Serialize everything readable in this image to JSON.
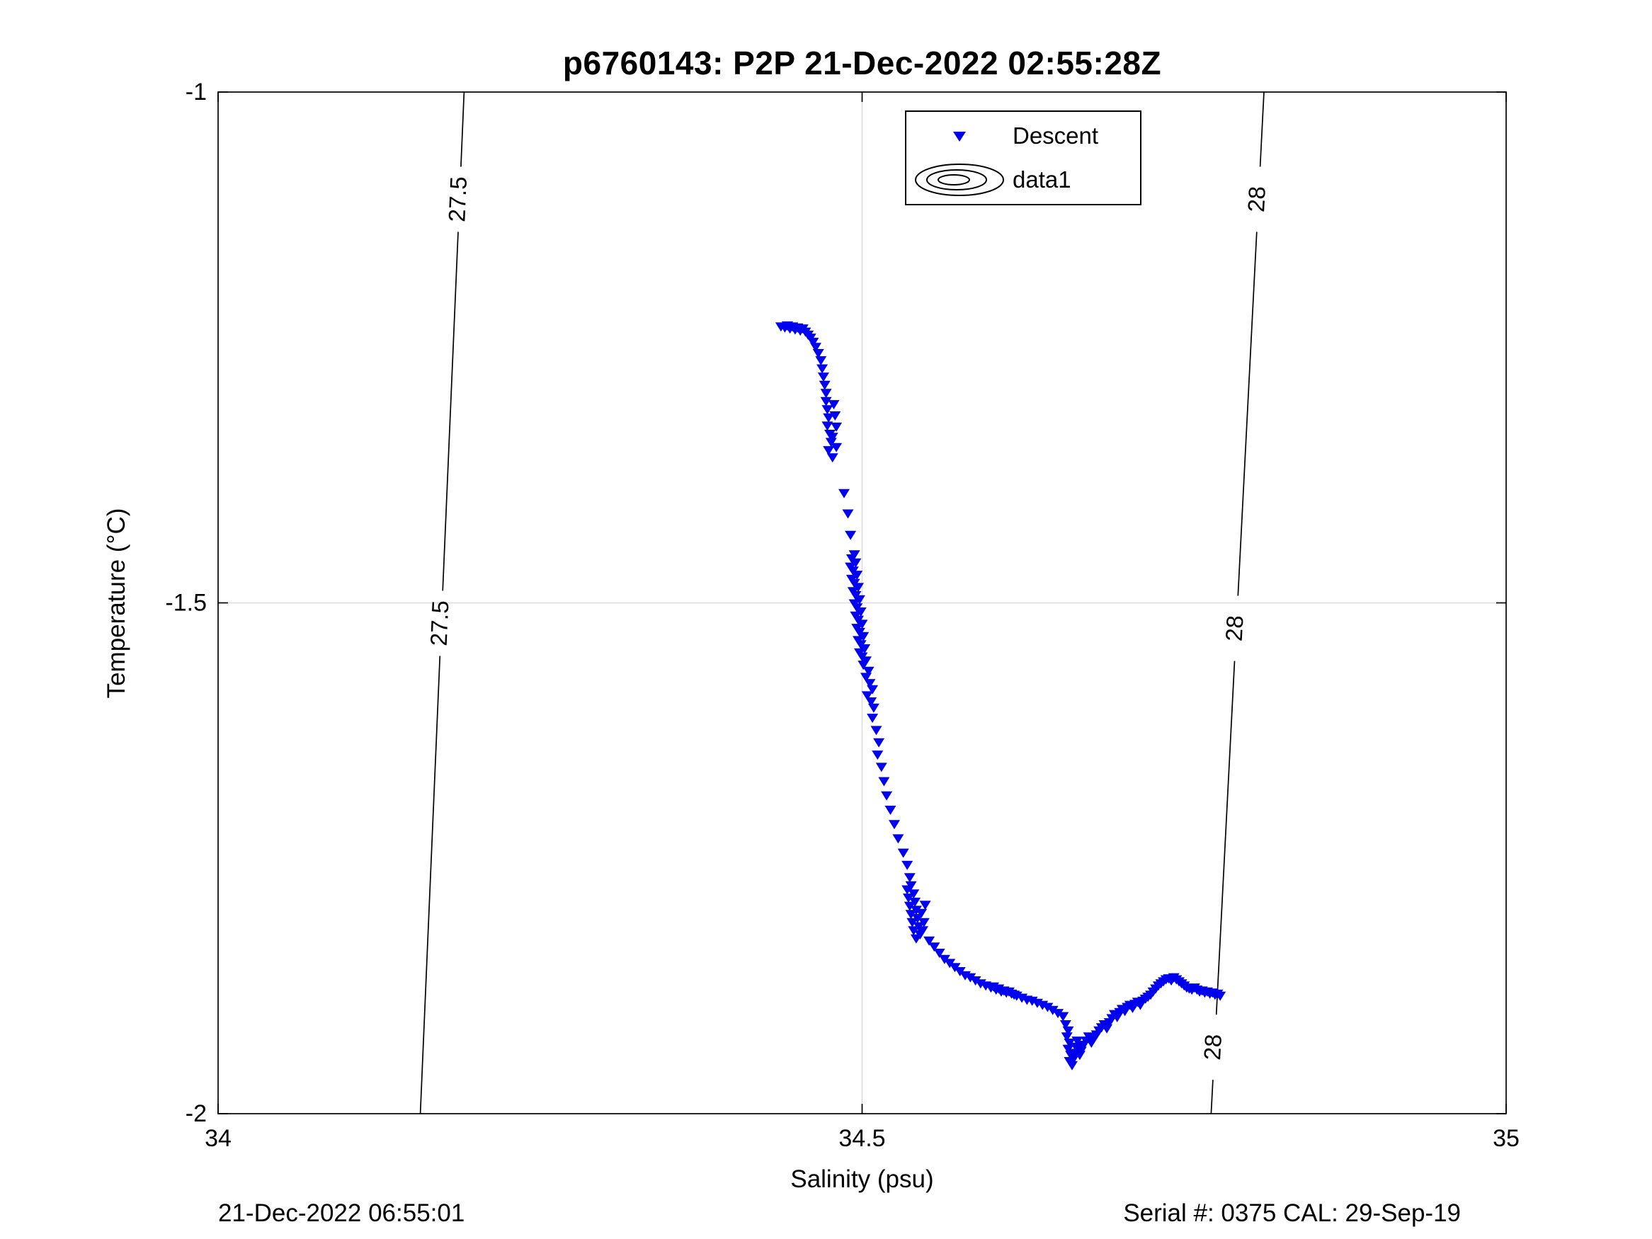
{
  "title": "p6760143: P2P 21-Dec-2022 02:55:28Z",
  "footer": {
    "left": "21-Dec-2022 06:55:01",
    "right": "Serial #: 0375  CAL: 29-Sep-19"
  },
  "legend": {
    "position": "top-center-right",
    "items": [
      {
        "label": "Descent",
        "marker": "triangle-down",
        "color": "#0000EE"
      },
      {
        "label": "data1",
        "marker": "contour-rings",
        "color": "#000000"
      }
    ]
  },
  "chart_data": {
    "type": "scatter",
    "title": "p6760143: P2P 21-Dec-2022 02:55:28Z",
    "xlabel": "Salinity (psu)",
    "ylabel": "Temperature (°C)",
    "xlim": [
      34,
      35
    ],
    "ylim": [
      -2,
      -1
    ],
    "grid": {
      "x": [
        34.5
      ],
      "y": [
        -1.5
      ],
      "color": "#dcdcdc"
    },
    "xticks": [
      {
        "v": 34,
        "label": "34"
      },
      {
        "v": 34.5,
        "label": "34.5"
      },
      {
        "v": 35,
        "label": "35"
      }
    ],
    "yticks": [
      {
        "v": -1,
        "label": "-1"
      },
      {
        "v": -1.5,
        "label": "-1.5"
      },
      {
        "v": -2,
        "label": "-2"
      }
    ],
    "contours": [
      {
        "label": "27.5",
        "top": [
          34.191,
          -1.0
        ],
        "bottom": [
          34.157,
          -2.0
        ],
        "label_t": [
          -1.105,
          -1.52
        ]
      },
      {
        "label": "28",
        "top": [
          34.812,
          -1.0
        ],
        "bottom": [
          34.771,
          -2.0
        ],
        "label_t": [
          -1.105,
          -1.525,
          -1.935
        ]
      }
    ],
    "series": [
      {
        "name": "Descent",
        "marker": "v",
        "color": "#0000EE",
        "points": [
          [
            34.437,
            -1.229
          ],
          [
            34.44,
            -1.23
          ],
          [
            34.442,
            -1.228
          ],
          [
            34.444,
            -1.231
          ],
          [
            34.446,
            -1.229
          ],
          [
            34.448,
            -1.232
          ],
          [
            34.45,
            -1.23
          ],
          [
            34.452,
            -1.233
          ],
          [
            34.454,
            -1.231
          ],
          [
            34.456,
            -1.234
          ],
          [
            34.458,
            -1.237
          ],
          [
            34.46,
            -1.24
          ],
          [
            34.462,
            -1.244
          ],
          [
            34.464,
            -1.249
          ],
          [
            34.466,
            -1.255
          ],
          [
            34.468,
            -1.262
          ],
          [
            34.469,
            -1.27
          ],
          [
            34.47,
            -1.278
          ],
          [
            34.471,
            -1.286
          ],
          [
            34.472,
            -1.294
          ],
          [
            34.472,
            -1.302
          ],
          [
            34.473,
            -1.31
          ],
          [
            34.474,
            -1.318
          ],
          [
            34.473,
            -1.326
          ],
          [
            34.475,
            -1.334
          ],
          [
            34.476,
            -1.342
          ],
          [
            34.474,
            -1.35
          ],
          [
            34.477,
            -1.357
          ],
          [
            34.478,
            -1.305
          ],
          [
            34.479,
            -1.316
          ],
          [
            34.48,
            -1.327
          ],
          [
            34.477,
            -1.337
          ],
          [
            34.48,
            -1.347
          ],
          [
            34.486,
            -1.392
          ],
          [
            34.489,
            -1.412
          ],
          [
            34.491,
            -1.433
          ],
          [
            34.494,
            -1.452
          ],
          [
            34.492,
            -1.456
          ],
          [
            34.495,
            -1.46
          ],
          [
            34.491,
            -1.464
          ],
          [
            34.493,
            -1.468
          ],
          [
            34.496,
            -1.472
          ],
          [
            34.492,
            -1.476
          ],
          [
            34.494,
            -1.48
          ],
          [
            34.497,
            -1.484
          ],
          [
            34.493,
            -1.488
          ],
          [
            34.495,
            -1.492
          ],
          [
            34.498,
            -1.496
          ],
          [
            34.494,
            -1.5
          ],
          [
            34.496,
            -1.504
          ],
          [
            34.499,
            -1.508
          ],
          [
            34.495,
            -1.512
          ],
          [
            34.497,
            -1.516
          ],
          [
            34.5,
            -1.52
          ],
          [
            34.496,
            -1.524
          ],
          [
            34.498,
            -1.528
          ],
          [
            34.501,
            -1.532
          ],
          [
            34.497,
            -1.536
          ],
          [
            34.499,
            -1.54
          ],
          [
            34.502,
            -1.544
          ],
          [
            34.498,
            -1.548
          ],
          [
            34.5,
            -1.552
          ],
          [
            34.503,
            -1.556
          ],
          [
            34.501,
            -1.56
          ],
          [
            34.505,
            -1.566
          ],
          [
            34.503,
            -1.572
          ],
          [
            34.506,
            -1.578
          ],
          [
            34.508,
            -1.584
          ],
          [
            34.504,
            -1.59
          ],
          [
            34.507,
            -1.596
          ],
          [
            34.509,
            -1.602
          ],
          [
            34.508,
            -1.612
          ],
          [
            34.511,
            -1.624
          ],
          [
            34.513,
            -1.636
          ],
          [
            34.512,
            -1.648
          ],
          [
            34.515,
            -1.66
          ],
          [
            34.517,
            -1.674
          ],
          [
            34.519,
            -1.688
          ],
          [
            34.522,
            -1.702
          ],
          [
            34.525,
            -1.716
          ],
          [
            34.528,
            -1.73
          ],
          [
            34.532,
            -1.744
          ],
          [
            34.535,
            -1.756
          ],
          [
            34.537,
            -1.768
          ],
          [
            34.538,
            -1.776
          ],
          [
            34.535,
            -1.78
          ],
          [
            34.54,
            -1.784
          ],
          [
            34.536,
            -1.788
          ],
          [
            34.541,
            -1.792
          ],
          [
            34.537,
            -1.796
          ],
          [
            34.542,
            -1.8
          ],
          [
            34.538,
            -1.804
          ],
          [
            34.543,
            -1.808
          ],
          [
            34.539,
            -1.812
          ],
          [
            34.544,
            -1.816
          ],
          [
            34.54,
            -1.82
          ],
          [
            34.545,
            -1.824
          ],
          [
            34.542,
            -1.828
          ],
          [
            34.547,
            -1.82
          ],
          [
            34.548,
            -1.812
          ],
          [
            34.546,
            -1.803
          ],
          [
            34.549,
            -1.795
          ],
          [
            34.552,
            -1.83
          ],
          [
            34.556,
            -1.836
          ],
          [
            34.56,
            -1.842
          ],
          [
            34.564,
            -1.848
          ],
          [
            34.568,
            -1.852
          ],
          [
            34.572,
            -1.856
          ],
          [
            34.576,
            -1.86
          ],
          [
            34.58,
            -1.864
          ],
          [
            34.584,
            -1.866
          ],
          [
            34.588,
            -1.869
          ],
          [
            34.592,
            -1.872
          ],
          [
            34.596,
            -1.874
          ],
          [
            34.6,
            -1.876
          ],
          [
            34.602,
            -1.875
          ],
          [
            34.604,
            -1.878
          ],
          [
            34.606,
            -1.877
          ],
          [
            34.608,
            -1.88
          ],
          [
            34.61,
            -1.879
          ],
          [
            34.612,
            -1.881
          ],
          [
            34.614,
            -1.88
          ],
          [
            34.616,
            -1.882
          ],
          [
            34.618,
            -1.883
          ],
          [
            34.62,
            -1.884
          ],
          [
            34.624,
            -1.886
          ],
          [
            34.628,
            -1.888
          ],
          [
            34.632,
            -1.889
          ],
          [
            34.636,
            -1.891
          ],
          [
            34.64,
            -1.893
          ],
          [
            34.644,
            -1.895
          ],
          [
            34.648,
            -1.898
          ],
          [
            34.652,
            -1.901
          ],
          [
            34.656,
            -1.904
          ],
          [
            34.658,
            -1.912
          ],
          [
            34.66,
            -1.918
          ],
          [
            34.659,
            -1.924
          ],
          [
            34.661,
            -1.93
          ],
          [
            34.66,
            -1.936
          ],
          [
            34.662,
            -1.942
          ],
          [
            34.661,
            -1.948
          ],
          [
            34.663,
            -1.952
          ],
          [
            34.664,
            -1.946
          ],
          [
            34.665,
            -1.94
          ],
          [
            34.666,
            -1.934
          ],
          [
            34.667,
            -1.928
          ],
          [
            34.668,
            -1.936
          ],
          [
            34.669,
            -1.942
          ],
          [
            34.67,
            -1.938
          ],
          [
            34.672,
            -1.932
          ],
          [
            34.674,
            -1.928
          ],
          [
            34.676,
            -1.924
          ],
          [
            34.678,
            -1.93
          ],
          [
            34.68,
            -1.926
          ],
          [
            34.682,
            -1.922
          ],
          [
            34.684,
            -1.918
          ],
          [
            34.686,
            -1.915
          ],
          [
            34.688,
            -1.912
          ],
          [
            34.69,
            -1.916
          ],
          [
            34.692,
            -1.91
          ],
          [
            34.694,
            -1.906
          ],
          [
            34.696,
            -1.902
          ],
          [
            34.698,
            -1.905
          ],
          [
            34.7,
            -1.9
          ],
          [
            34.702,
            -1.897
          ],
          [
            34.704,
            -1.899
          ],
          [
            34.706,
            -1.895
          ],
          [
            34.708,
            -1.893
          ],
          [
            34.71,
            -1.896
          ],
          [
            34.712,
            -1.892
          ],
          [
            34.714,
            -1.89
          ],
          [
            34.716,
            -1.893
          ],
          [
            34.718,
            -1.889
          ],
          [
            34.72,
            -1.887
          ],
          [
            34.722,
            -1.885
          ],
          [
            34.724,
            -1.883
          ],
          [
            34.726,
            -1.88
          ],
          [
            34.728,
            -1.877
          ],
          [
            34.73,
            -1.874
          ],
          [
            34.732,
            -1.872
          ],
          [
            34.734,
            -1.87
          ],
          [
            34.736,
            -1.868
          ],
          [
            34.738,
            -1.867
          ],
          [
            34.74,
            -1.869
          ],
          [
            34.742,
            -1.866
          ],
          [
            34.744,
            -1.868
          ],
          [
            34.746,
            -1.87
          ],
          [
            34.748,
            -1.872
          ],
          [
            34.75,
            -1.874
          ],
          [
            34.752,
            -1.876
          ],
          [
            34.754,
            -1.877
          ],
          [
            34.756,
            -1.878
          ],
          [
            34.758,
            -1.876
          ],
          [
            34.76,
            -1.878
          ],
          [
            34.762,
            -1.88
          ],
          [
            34.764,
            -1.879
          ],
          [
            34.766,
            -1.881
          ],
          [
            34.768,
            -1.88
          ],
          [
            34.77,
            -1.882
          ],
          [
            34.772,
            -1.881
          ],
          [
            34.774,
            -1.883
          ],
          [
            34.776,
            -1.882
          ],
          [
            34.778,
            -1.884
          ]
        ]
      }
    ]
  }
}
